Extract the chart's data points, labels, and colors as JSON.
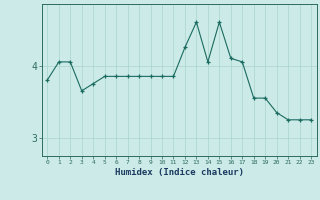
{
  "x": [
    0,
    1,
    2,
    3,
    4,
    5,
    6,
    7,
    8,
    9,
    10,
    11,
    12,
    13,
    14,
    15,
    16,
    17,
    18,
    19,
    20,
    21,
    22,
    23
  ],
  "y": [
    3.8,
    4.05,
    4.05,
    3.65,
    3.75,
    3.85,
    3.85,
    3.85,
    3.85,
    3.85,
    3.85,
    3.85,
    4.25,
    4.6,
    4.05,
    4.6,
    4.1,
    4.05,
    3.55,
    3.55,
    3.35,
    3.25,
    3.25,
    3.25
  ],
  "title": "",
  "xlabel": "Humidex (Indice chaleur)",
  "ylabel": "",
  "ylim": [
    2.75,
    4.85
  ],
  "yticks": [
    3,
    4
  ],
  "bg_color": "#cceae7",
  "line_color": "#1a6b60",
  "grid_color": "#aad4d0",
  "axes_color": "#2d6b60",
  "tick_label_color": "#1a3a60",
  "xlabel_color": "#1a3a60"
}
